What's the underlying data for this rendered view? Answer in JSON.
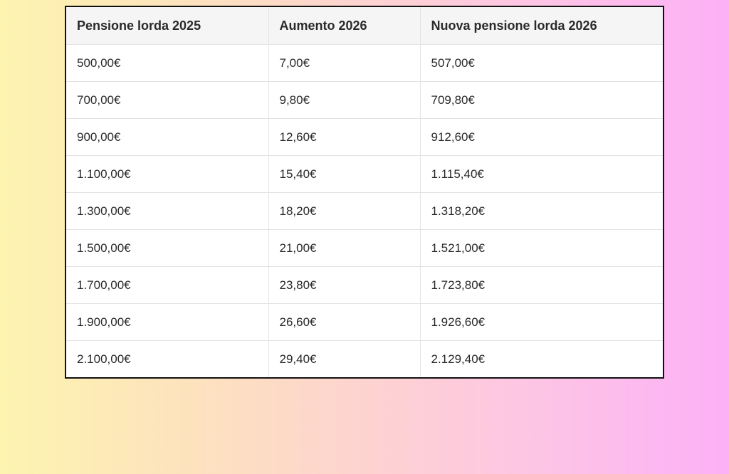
{
  "table": {
    "headers": [
      "Pensione lorda 2025",
      "Aumento 2026",
      "Nuova pensione lorda 2026"
    ],
    "rows": [
      [
        "500,00€",
        "7,00€",
        "507,00€"
      ],
      [
        "700,00€",
        "9,80€",
        "709,80€"
      ],
      [
        "900,00€",
        "12,60€",
        "912,60€"
      ],
      [
        "1.100,00€",
        "15,40€",
        "1.115,40€"
      ],
      [
        "1.300,00€",
        "18,20€",
        "1.318,20€"
      ],
      [
        "1.500,00€",
        "21,00€",
        "1.521,00€"
      ],
      [
        "1.700,00€",
        "23,80€",
        "1.723,80€"
      ],
      [
        "1.900,00€",
        "26,60€",
        "1.926,60€"
      ],
      [
        "2.100,00€",
        "29,40€",
        "2.129,40€"
      ]
    ]
  },
  "colors": {
    "gradient_left": "#fdf4b0",
    "gradient_right": "#fcb0f6",
    "header_bg": "#f5f5f5",
    "border": "#111111"
  }
}
